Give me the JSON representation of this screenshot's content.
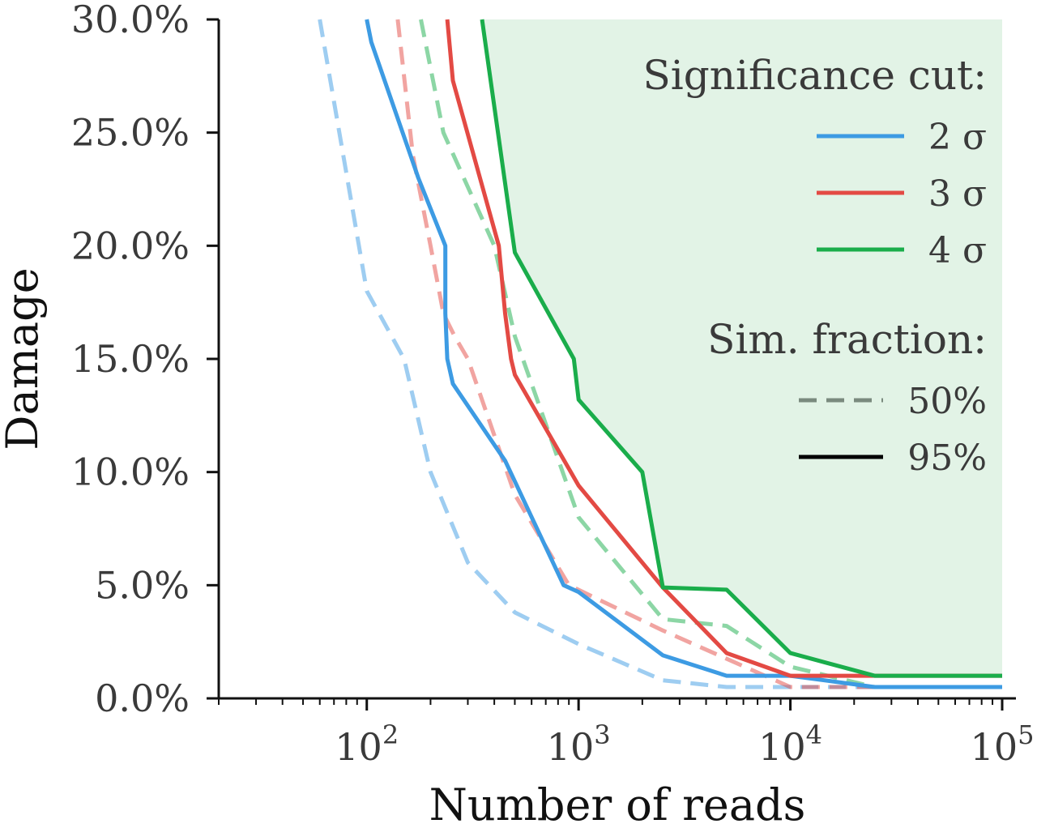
{
  "chart_data": {
    "type": "line",
    "xlabel": "Number of reads",
    "ylabel": "Damage",
    "x_scale": "log",
    "xlim": [
      20,
      100000
    ],
    "ylim": [
      0,
      0.3
    ],
    "x_ticks": [
      {
        "value": 100,
        "base": "10",
        "exp": "2"
      },
      {
        "value": 1000,
        "base": "10",
        "exp": "3"
      },
      {
        "value": 10000,
        "base": "10",
        "exp": "4"
      },
      {
        "value": 100000,
        "base": "10",
        "exp": "5"
      }
    ],
    "y_ticks": [
      {
        "value": 0.0,
        "label": "0.0%"
      },
      {
        "value": 0.05,
        "label": "5.0%"
      },
      {
        "value": 0.1,
        "label": "10.0%"
      },
      {
        "value": 0.15,
        "label": "15.0%"
      },
      {
        "value": 0.2,
        "label": "20.0%"
      },
      {
        "value": 0.25,
        "label": "25.0%"
      },
      {
        "value": 0.3,
        "label": "30.0%"
      }
    ],
    "grid": false,
    "legend": {
      "placement": "top-right",
      "significance_title": "Significance cut:",
      "significance_items": [
        {
          "label": "2 σ",
          "color": "#3d9be3"
        },
        {
          "label": "3 σ",
          "color": "#e34a44"
        },
        {
          "label": "4 σ",
          "color": "#1aad4b"
        }
      ],
      "fraction_title": "Sim. fraction:",
      "fraction_items": [
        {
          "label": "50%",
          "style": "dashed",
          "color": "#7a8a7e"
        },
        {
          "label": "95%",
          "style": "solid",
          "color": "#000000"
        }
      ]
    },
    "shaded_region": {
      "series": "4σ 95%",
      "color": "#e2f3e6"
    },
    "series": [
      {
        "sigma": "2σ",
        "fraction": "50%",
        "color": "#3d9be3",
        "dashed": true,
        "opacity": 0.5,
        "points": [
          [
            60,
            0.3
          ],
          [
            100,
            0.18
          ],
          [
            150,
            0.15
          ],
          [
            200,
            0.1
          ],
          [
            300,
            0.06
          ],
          [
            500,
            0.038
          ],
          [
            1000,
            0.024
          ],
          [
            2500,
            0.008
          ],
          [
            5000,
            0.005
          ],
          [
            10000,
            0.005
          ],
          [
            30000,
            0.005
          ],
          [
            100000,
            0.005
          ]
        ]
      },
      {
        "sigma": "2σ",
        "fraction": "95%",
        "color": "#3d9be3",
        "dashed": false,
        "opacity": 1,
        "points": [
          [
            100,
            0.3
          ],
          [
            105,
            0.29
          ],
          [
            175,
            0.23
          ],
          [
            235,
            0.2
          ],
          [
            235,
            0.17
          ],
          [
            240,
            0.15
          ],
          [
            255,
            0.139
          ],
          [
            450,
            0.105
          ],
          [
            850,
            0.05
          ],
          [
            1000,
            0.047
          ],
          [
            2500,
            0.019
          ],
          [
            5000,
            0.01
          ],
          [
            10000,
            0.01
          ],
          [
            25000,
            0.005
          ],
          [
            100000,
            0.005
          ]
        ]
      },
      {
        "sigma": "3σ",
        "fraction": "50%",
        "color": "#e34a44",
        "dashed": true,
        "opacity": 0.5,
        "points": [
          [
            140,
            0.3
          ],
          [
            165,
            0.24
          ],
          [
            200,
            0.2
          ],
          [
            230,
            0.17
          ],
          [
            260,
            0.16
          ],
          [
            300,
            0.15
          ],
          [
            500,
            0.09
          ],
          [
            900,
            0.05
          ],
          [
            2500,
            0.03
          ],
          [
            10000,
            0.005
          ],
          [
            100000,
            0.005
          ]
        ]
      },
      {
        "sigma": "3σ",
        "fraction": "95%",
        "color": "#e34a44",
        "dashed": false,
        "opacity": 1,
        "points": [
          [
            240,
            0.3
          ],
          [
            255,
            0.273
          ],
          [
            420,
            0.2
          ],
          [
            450,
            0.17
          ],
          [
            480,
            0.15
          ],
          [
            500,
            0.143
          ],
          [
            1000,
            0.094
          ],
          [
            2500,
            0.049
          ],
          [
            5000,
            0.02
          ],
          [
            10000,
            0.01
          ],
          [
            25000,
            0.01
          ],
          [
            100000,
            0.01
          ]
        ]
      },
      {
        "sigma": "4σ",
        "fraction": "50%",
        "color": "#1aad4b",
        "dashed": true,
        "opacity": 0.5,
        "points": [
          [
            180,
            0.3
          ],
          [
            230,
            0.25
          ],
          [
            400,
            0.2
          ],
          [
            500,
            0.16
          ],
          [
            1000,
            0.08
          ],
          [
            2500,
            0.035
          ],
          [
            5000,
            0.032
          ],
          [
            10000,
            0.014
          ],
          [
            25000,
            0.005
          ],
          [
            100000,
            0.005
          ]
        ]
      },
      {
        "sigma": "4σ",
        "fraction": "95%",
        "color": "#1aad4b",
        "dashed": false,
        "opacity": 1,
        "points": [
          [
            350,
            0.3
          ],
          [
            500,
            0.197
          ],
          [
            950,
            0.15
          ],
          [
            1000,
            0.132
          ],
          [
            2000,
            0.1
          ],
          [
            2500,
            0.049
          ],
          [
            5000,
            0.048
          ],
          [
            10000,
            0.02
          ],
          [
            25000,
            0.01
          ],
          [
            100000,
            0.01
          ]
        ]
      }
    ]
  }
}
